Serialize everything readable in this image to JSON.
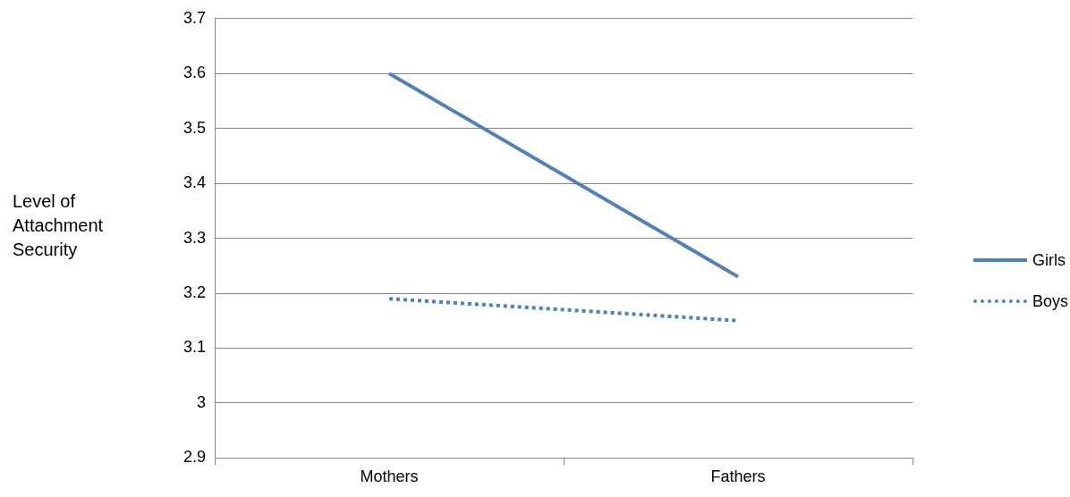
{
  "chart_data": {
    "type": "line",
    "ylabel": "Level of Attachment Security",
    "categories": [
      "Mothers",
      "Fathers"
    ],
    "series": [
      {
        "name": "Girls",
        "color": "#4f81bd",
        "values": [
          3.6,
          3.23
        ],
        "line_style": "solid"
      },
      {
        "name": "Boys",
        "color": "#4f81bd",
        "values": [
          3.19,
          3.15
        ],
        "line_style": "dotted"
      }
    ],
    "ylim": [
      2.9,
      3.7
    ],
    "yticks": [
      2.9,
      3,
      3.1,
      3.2,
      3.3,
      3.4,
      3.5,
      3.6,
      3.7
    ],
    "grid": "y",
    "legend": "right",
    "marker": "none"
  }
}
